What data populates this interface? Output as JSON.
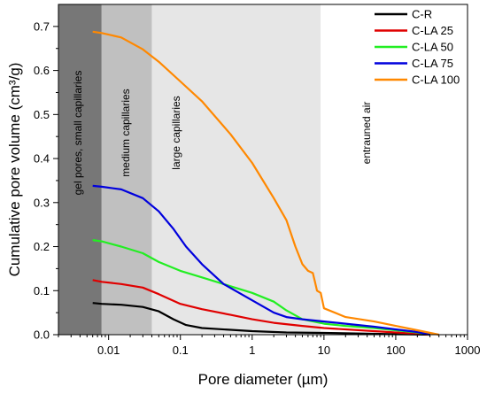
{
  "chart_data": {
    "type": "line",
    "xlabel": "Pore diameter (µm)",
    "ylabel": "Cumulative pore volume (cm³/g)",
    "x_scale": "log",
    "xlim": [
      0.002,
      1000
    ],
    "ylim": [
      0.0,
      0.75
    ],
    "x_ticks": [
      0.01,
      0.1,
      1,
      10,
      100,
      1000
    ],
    "x_tick_labels": [
      "0.01",
      "0.1",
      "1",
      "10",
      "100",
      "1000"
    ],
    "y_ticks": [
      0.0,
      0.1,
      0.2,
      0.3,
      0.4,
      0.5,
      0.6,
      0.7
    ],
    "y_tick_labels": [
      "0.0",
      "0.1",
      "0.2",
      "0.3",
      "0.4",
      "0.5",
      "0.6",
      "0.7"
    ],
    "grid": false,
    "legend_position": "top-right",
    "regions": [
      {
        "label": "gel pores, small capillaries",
        "from": 0.002,
        "to": 0.008,
        "color": "#777777"
      },
      {
        "label": "medium capillaries",
        "from": 0.008,
        "to": 0.04,
        "color": "#c0c0c0"
      },
      {
        "label": "large capillaries",
        "from": 0.04,
        "to": 9,
        "color": "#e6e6e6"
      },
      {
        "label": "entrauned air",
        "from": 9,
        "to": 1000,
        "color": "#ffffff"
      }
    ],
    "series": [
      {
        "name": "C-R",
        "color": "#000000",
        "x": [
          0.006,
          0.008,
          0.015,
          0.03,
          0.05,
          0.08,
          0.12,
          0.2,
          0.5,
          1,
          3,
          10,
          50,
          100,
          200,
          300
        ],
        "y": [
          0.072,
          0.07,
          0.068,
          0.063,
          0.053,
          0.035,
          0.022,
          0.015,
          0.011,
          0.008,
          0.005,
          0.004,
          0.002,
          0.001,
          0.0005,
          0.0
        ]
      },
      {
        "name": "C-LA 25",
        "color": "#e00000",
        "x": [
          0.006,
          0.008,
          0.015,
          0.03,
          0.05,
          0.1,
          0.2,
          0.5,
          1,
          2,
          5,
          10,
          20,
          50,
          100,
          200,
          300
        ],
        "y": [
          0.124,
          0.12,
          0.115,
          0.107,
          0.092,
          0.07,
          0.058,
          0.045,
          0.035,
          0.027,
          0.02,
          0.015,
          0.012,
          0.008,
          0.005,
          0.002,
          0.0
        ]
      },
      {
        "name": "C-LA 50",
        "color": "#22ee22",
        "x": [
          0.006,
          0.008,
          0.015,
          0.03,
          0.05,
          0.1,
          0.2,
          0.5,
          1,
          2,
          3,
          5,
          10,
          20,
          50,
          100,
          200,
          300
        ],
        "y": [
          0.215,
          0.212,
          0.2,
          0.185,
          0.165,
          0.145,
          0.13,
          0.11,
          0.095,
          0.075,
          0.055,
          0.035,
          0.025,
          0.02,
          0.015,
          0.01,
          0.005,
          0.0
        ]
      },
      {
        "name": "C-LA 75",
        "color": "#0000dd",
        "x": [
          0.006,
          0.008,
          0.015,
          0.03,
          0.05,
          0.08,
          0.12,
          0.2,
          0.4,
          1,
          2,
          3,
          5,
          10,
          20,
          50,
          100,
          200,
          300
        ],
        "y": [
          0.338,
          0.336,
          0.33,
          0.31,
          0.28,
          0.24,
          0.2,
          0.16,
          0.115,
          0.078,
          0.05,
          0.04,
          0.035,
          0.03,
          0.025,
          0.018,
          0.012,
          0.006,
          0.0
        ]
      },
      {
        "name": "C-LA 100",
        "color": "#ff8800",
        "x": [
          0.006,
          0.008,
          0.015,
          0.03,
          0.05,
          0.1,
          0.2,
          0.5,
          1,
          2,
          3,
          4,
          5,
          6,
          7,
          7.5,
          8,
          9,
          10,
          20,
          50,
          100,
          200,
          400
        ],
        "y": [
          0.688,
          0.685,
          0.675,
          0.648,
          0.62,
          0.575,
          0.53,
          0.455,
          0.39,
          0.31,
          0.26,
          0.2,
          0.16,
          0.145,
          0.14,
          0.12,
          0.1,
          0.095,
          0.06,
          0.04,
          0.03,
          0.02,
          0.01,
          0.0
        ]
      }
    ]
  }
}
